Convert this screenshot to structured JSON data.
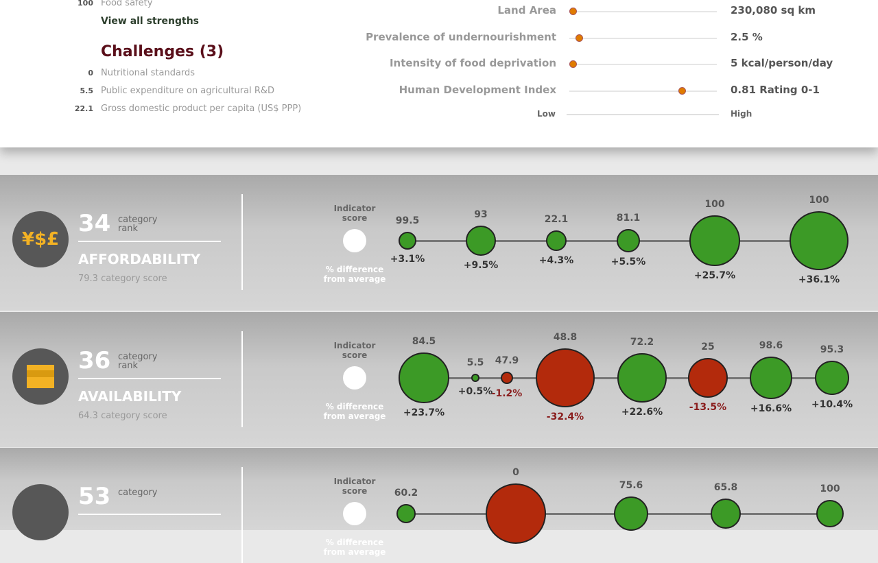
{
  "strengths": {
    "items": [
      {
        "score": "100",
        "label": "Food safety"
      }
    ],
    "view_all": "View all strengths"
  },
  "challenges": {
    "title": "Challenges (3)",
    "items": [
      {
        "score": "0",
        "label": "Nutritional standards"
      },
      {
        "score": "5.5",
        "label": "Public expenditure on agricultural R&D"
      },
      {
        "score": "22.1",
        "label": "Gross domestic product per capita (US$ PPP)"
      }
    ]
  },
  "indicators": [
    {
      "label": "Land Area",
      "value": "230,080 sq km",
      "level": 0.02
    },
    {
      "label": "Prevalence of undernourishment",
      "value": "2.5 %",
      "level": 0.06
    },
    {
      "label": "Intensity of food deprivation",
      "value": "5 kcal/person/day",
      "level": 0.02
    },
    {
      "label": "Human Development Index",
      "value": "0.81 Rating 0-1",
      "level": 0.76
    }
  ],
  "scale": {
    "low": "Low",
    "high": "High"
  },
  "legend": {
    "score": "Indicator score",
    "diff": "% difference from average"
  },
  "colors": {
    "green": "#3c9a26",
    "red": "#b32a0c",
    "pos_text": "#333",
    "neg_text": "#8a1e1e"
  },
  "categories": [
    {
      "rank": "34",
      "rank_label": "category rank",
      "name": "AFFORDABILITY",
      "score": "79.3 category score",
      "icon": "currency-icon",
      "icon_text": "¥$£",
      "circles": [
        {
          "v": "99.5",
          "p": "+3.1%",
          "pos": true
        },
        {
          "v": "93",
          "p": "+9.5%",
          "pos": true
        },
        {
          "v": "22.1",
          "p": "+4.3%",
          "pos": true
        },
        {
          "v": "81.1",
          "p": "+5.5%",
          "pos": true
        },
        {
          "v": "100",
          "p": "+25.7%",
          "pos": true
        },
        {
          "v": "100",
          "p": "+36.1%",
          "pos": true
        }
      ]
    },
    {
      "rank": "36",
      "rank_label": "category rank",
      "name": "AVAILABILITY",
      "score": "64.3 category score",
      "icon": "market-stall-icon",
      "icon_text": "",
      "circles": [
        {
          "v": "84.5",
          "p": "+23.7%",
          "pos": true
        },
        {
          "v": "5.5",
          "p": "+0.5%",
          "pos": true
        },
        {
          "v": "47.9",
          "p": "-1.2%",
          "pos": false
        },
        {
          "v": "48.8",
          "p": "-32.4%",
          "pos": false
        },
        {
          "v": "72.2",
          "p": "+22.6%",
          "pos": true
        },
        {
          "v": "25",
          "p": "-13.5%",
          "pos": false
        },
        {
          "v": "98.6",
          "p": "+16.6%",
          "pos": true
        },
        {
          "v": "95.3",
          "p": "+10.4%",
          "pos": true
        }
      ]
    },
    {
      "rank": "53",
      "rank_label": "category",
      "name": "",
      "score": "",
      "icon": "quality-icon",
      "icon_text": "",
      "circles": [
        {
          "v": "60.2",
          "p": "",
          "pos": true
        },
        {
          "v": "0",
          "p": "",
          "pos": false
        },
        {
          "v": "75.6",
          "p": "",
          "pos": true
        },
        {
          "v": "65.8",
          "p": "",
          "pos": true
        },
        {
          "v": "100",
          "p": "",
          "pos": true
        }
      ]
    }
  ]
}
